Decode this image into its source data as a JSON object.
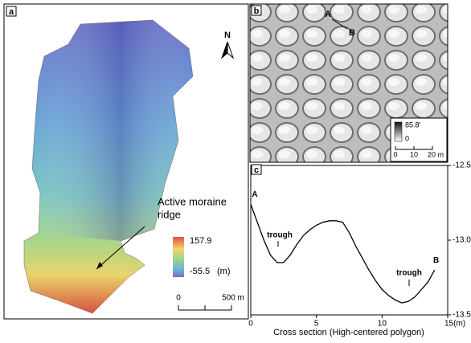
{
  "panels": {
    "a": {
      "label": "a",
      "north": "N",
      "annotation": [
        "Active moraine",
        "ridge"
      ],
      "colorbar": {
        "max": 157.9,
        "min": -55.5,
        "unit": "(m)"
      },
      "scalebar": [
        0,
        "500 m"
      ]
    },
    "b": {
      "label": "b",
      "points": [
        "A",
        "B"
      ],
      "colorbar": {
        "max": "85.8'",
        "min": 0
      },
      "scalebar": [
        0,
        10,
        "20 m"
      ]
    }
  },
  "chart_data": {
    "type": "line",
    "panel_label": "c",
    "x_label": "Cross section (High-centered polygon)",
    "x": [
      0,
      0.5,
      1,
      1.5,
      2,
      2.5,
      3,
      3.5,
      4,
      4.5,
      5,
      5.5,
      6,
      6.5,
      7,
      7.5,
      8,
      8.5,
      9,
      9.5,
      10,
      10.5,
      11,
      11.5,
      12,
      12.5,
      13,
      13.5,
      14
    ],
    "values": [
      -12.76,
      -12.88,
      -13.0,
      -13.1,
      -13.15,
      -13.15,
      -13.1,
      -13.03,
      -12.97,
      -12.93,
      -12.9,
      -12.88,
      -12.87,
      -12.87,
      -12.88,
      -12.95,
      -13.04,
      -13.12,
      -13.2,
      -13.27,
      -13.33,
      -13.37,
      -13.4,
      -13.42,
      -13.41,
      -13.38,
      -13.33,
      -13.28,
      -13.2
    ],
    "color": "#000000",
    "xlim": [
      0,
      15
    ],
    "xticks": [
      0,
      5,
      10,
      {
        "value": 15,
        "label": "15(m)"
      }
    ],
    "ylim": [
      -13.5,
      -12.5
    ],
    "yticks": [
      -12.5,
      {
        "value": -13.0,
        "label": "-13.0"
      },
      -13.5
    ],
    "annotations": [
      "A",
      "B",
      "trough",
      "trough"
    ]
  }
}
